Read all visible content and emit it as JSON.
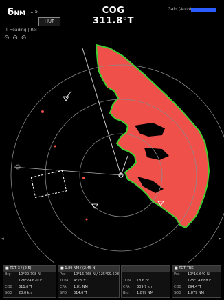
{
  "header": {
    "range_value": "6",
    "range_unit": "NM",
    "range_sub": "1.5",
    "mode_button": "HUP",
    "heading_mode": "T Heading | Rel",
    "cog": "COG 311.8°T",
    "gain_label": "Gain (Auto)"
  },
  "controls": [
    "⊙",
    "⊙",
    "⊙"
  ],
  "edge_markers": {
    "left": "◂",
    "right": "▸"
  },
  "radar": {
    "land_color": "#f0504a",
    "coast_edge_color": "#3fcf2f",
    "ring_color": "#8a8a8a",
    "background": "#000000"
  },
  "panels": [
    {
      "title": "■ TGT 3 / (2.5)",
      "rows": [
        [
          "Brg",
          "10°20.708 N"
        ],
        [
          "",
          "126°24.620 E"
        ],
        [
          "COG",
          "311.6°T"
        ],
        [
          "SOG",
          "20.0 kn"
        ]
      ]
    },
    {
      "title": "■ 1.89 NM / (2.45 N)",
      "rows": [
        [
          "Pos",
          "10°16.768 N / 125°09.608"
        ],
        [
          "TCPA",
          "4°23.3'T"
        ],
        [
          "CPA",
          "1.81 NM"
        ],
        [
          "SPD",
          "314.6°T"
        ]
      ]
    },
    {
      "title": "",
      "rows": [
        [
          "",
          ""
        ],
        [
          "TCPA",
          "18.6 hr"
        ],
        [
          "CPA",
          "309.7 kn"
        ],
        [
          "Brg",
          "1.879 NM"
        ]
      ]
    },
    {
      "title": "■ TGT TRK",
      "rows": [
        [
          "Pos",
          "10°16.640 N"
        ],
        [
          "",
          "125°14.688 E"
        ],
        [
          "COG",
          "294.4°T"
        ],
        [
          "SOG",
          "1.879 NM"
        ]
      ]
    }
  ]
}
